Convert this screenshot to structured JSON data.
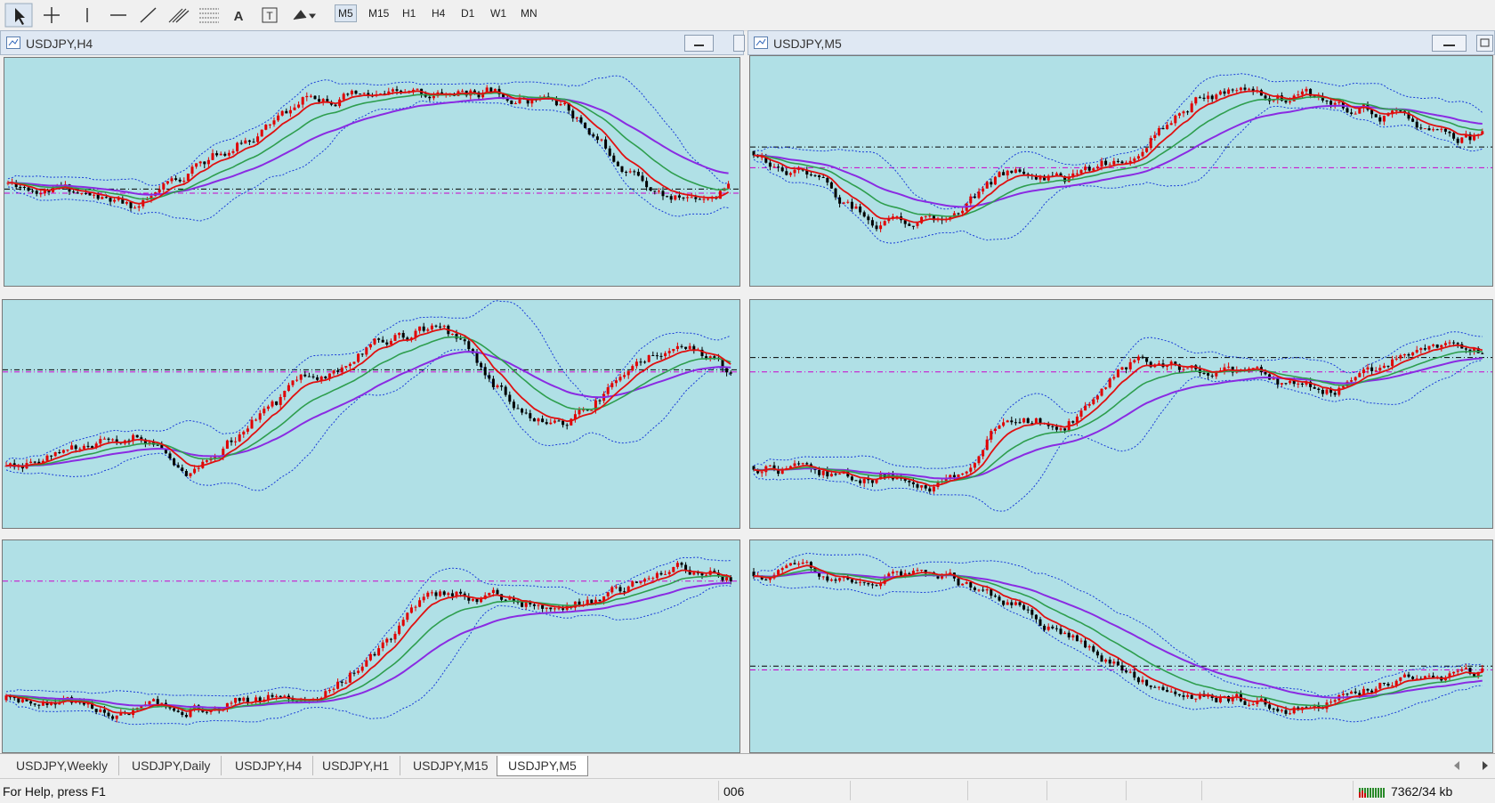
{
  "toolbar": {
    "text_tool": "A",
    "label_tool": "T",
    "timeframes": [
      "M5",
      "M15",
      "H1",
      "H4",
      "D1",
      "W1",
      "MN"
    ]
  },
  "windows": [
    {
      "title": "USDJPY,H4"
    },
    {
      "title": "USDJPY,M5"
    }
  ],
  "tabs": [
    "USDJPY,Weekly",
    "USDJPY,Daily",
    "USDJPY,H4",
    "USDJPY,H1",
    "USDJPY,M15",
    "USDJPY,M5"
  ],
  "status": {
    "help": "For Help, press F1",
    "field": "006",
    "traffic": "7362/34 kb"
  }
}
